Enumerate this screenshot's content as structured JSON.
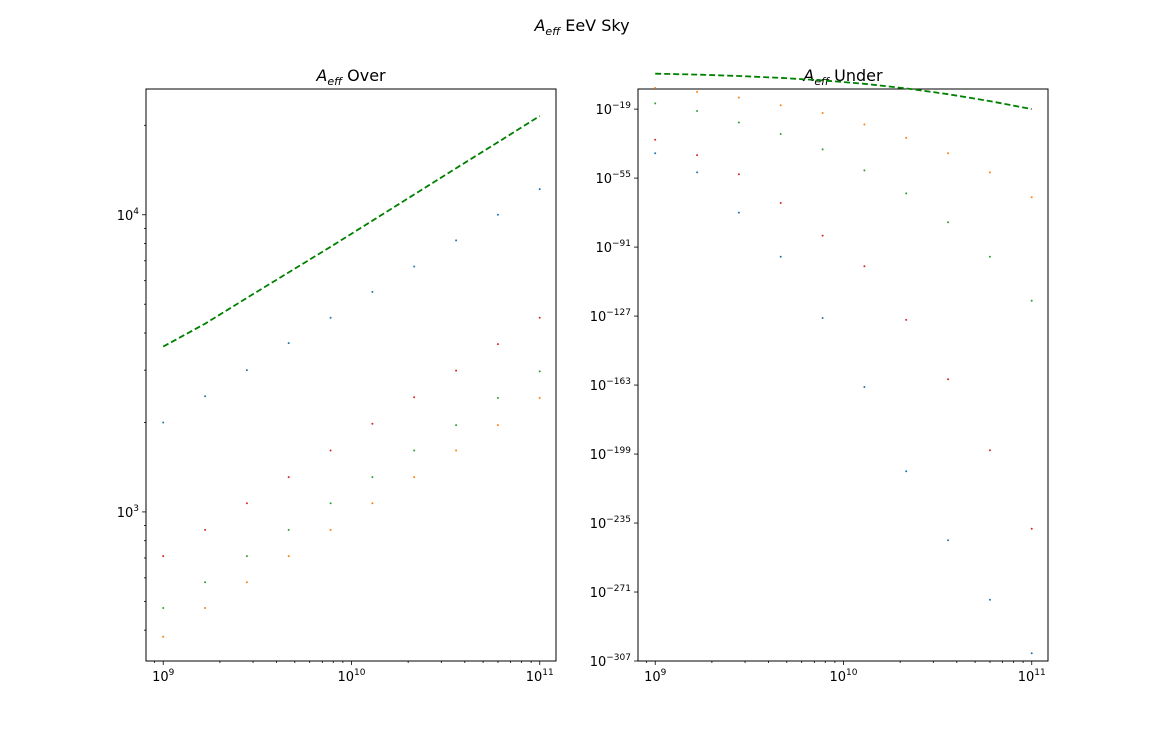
{
  "figure": {
    "suptitle_main": "A",
    "suptitle_sub": "eff",
    "suptitle_rest": " EeV Sky"
  },
  "chart_data": [
    {
      "type": "scatter",
      "title_main": "A",
      "title_sub": "eff",
      "title_rest": " Over",
      "xscale": "log",
      "yscale": "log",
      "xlim": [
        810000000.0,
        122000000000.0
      ],
      "ylim": [
        315,
        26500
      ],
      "x_ticks": [
        {
          "value": 1000000000.0,
          "exp": "9"
        },
        {
          "value": 10000000000.0,
          "exp": "10"
        },
        {
          "value": 100000000000.0,
          "exp": "11"
        }
      ],
      "y_ticks": [
        {
          "value": 1000,
          "exp": "3"
        },
        {
          "value": 10000,
          "exp": "4"
        }
      ],
      "x": [
        1000000000.0,
        1668000000.0,
        2783000000.0,
        4642000000.0,
        7743000000.0,
        12920000000.0,
        21540000000.0,
        35940000000.0,
        59950000000.0,
        100000000000.0
      ],
      "series": [
        {
          "color": "#1f77b4",
          "marker": "point",
          "values": [
            2000,
            2450,
            3000,
            3700,
            4500,
            5500,
            6700,
            8200,
            10000,
            12200
          ]
        },
        {
          "color": "#d62728",
          "marker": "point",
          "values": [
            710,
            870,
            1070,
            1310,
            1610,
            1980,
            2430,
            2990,
            3670,
            4500
          ]
        },
        {
          "color": "#2ca02c",
          "marker": "point",
          "values": [
            475,
            580,
            710,
            870,
            1070,
            1310,
            1610,
            1960,
            2420,
            2970
          ]
        },
        {
          "color": "#ff7f0e",
          "marker": "point",
          "values": [
            380,
            475,
            580,
            710,
            870,
            1070,
            1310,
            1610,
            1960,
            2420
          ]
        },
        {
          "color": "#008000",
          "marker": "dashed-line",
          "values": [
            3600,
            4300,
            5250,
            6400,
            7800,
            9550,
            11700,
            14350,
            17550,
            21500
          ]
        }
      ]
    },
    {
      "type": "scatter",
      "title_main": "A",
      "title_sub": "eff",
      "title_rest": " Under",
      "xscale": "log",
      "yscale": "log",
      "xlim": [
        810000000.0,
        122000000000.0
      ],
      "ylim_exp": [
        -307,
        -8.5
      ],
      "x_ticks": [
        {
          "value": 1000000000.0,
          "exp": "9"
        },
        {
          "value": 10000000000.0,
          "exp": "10"
        },
        {
          "value": 100000000000.0,
          "exp": "11"
        }
      ],
      "y_ticks": [
        {
          "value_exp": -19,
          "exp": "−19"
        },
        {
          "value_exp": -55,
          "exp": "−55"
        },
        {
          "value_exp": -91,
          "exp": "−91"
        },
        {
          "value_exp": -127,
          "exp": "−127"
        },
        {
          "value_exp": -163,
          "exp": "−163"
        },
        {
          "value_exp": -199,
          "exp": "−199"
        },
        {
          "value_exp": -235,
          "exp": "−235"
        },
        {
          "value_exp": -271,
          "exp": "−271"
        },
        {
          "value_exp": -307,
          "exp": "−307"
        }
      ],
      "x": [
        1000000000.0,
        1668000000.0,
        2783000000.0,
        4642000000.0,
        7743000000.0,
        12920000000.0,
        21540000000.0,
        35940000000.0,
        59950000000.0,
        100000000000.0
      ],
      "series": [
        {
          "color": "#1f77b4",
          "marker": "point",
          "values_exp": [
            -42,
            -52,
            -73,
            -96,
            -128,
            -164,
            -208,
            -244,
            -275,
            -303
          ]
        },
        {
          "color": "#d62728",
          "marker": "point",
          "values_exp": [
            -35,
            -43,
            -53,
            -68,
            -85,
            -101,
            -129,
            -160,
            -197,
            -238
          ]
        },
        {
          "color": "#2ca02c",
          "marker": "point",
          "values_exp": [
            -16,
            -20,
            -26,
            -32,
            -40,
            -51,
            -63,
            -78,
            -96,
            -119
          ]
        },
        {
          "color": "#ff7f0e",
          "marker": "point",
          "values_exp": [
            -8,
            -10,
            -13,
            -17,
            -21,
            -27,
            -34,
            -42,
            -52,
            -65
          ]
        },
        {
          "color": "#008000",
          "marker": "dashed-line",
          "values_exp": [
            -0.5,
            -1,
            -1.7,
            -2.7,
            -4,
            -5.8,
            -8.2,
            -11.2,
            -14.8,
            -19
          ]
        }
      ]
    }
  ]
}
